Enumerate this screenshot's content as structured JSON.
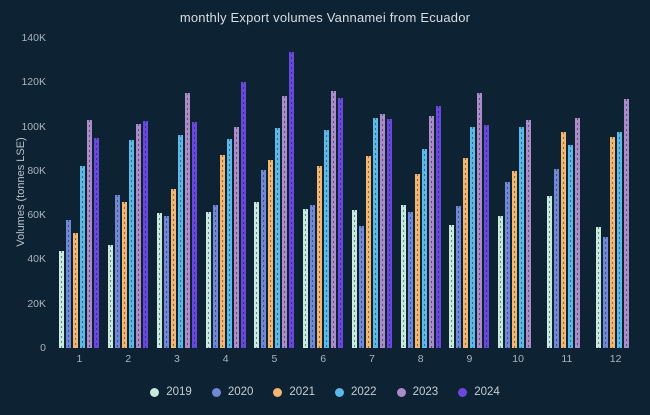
{
  "title": "monthly Export volumes Vannamei from Ecuador",
  "colors": {
    "background": "#0d2233",
    "title_text": "#d6dde4",
    "axis_text": "#a9b5c1",
    "legend_text": "#c6cdd4"
  },
  "chart_data": {
    "type": "bar",
    "title": "monthly Export volumes Vannamei from Ecuador",
    "xlabel": "",
    "ylabel": "Volumes (tonnes LSE)",
    "categories": [
      "1",
      "2",
      "3",
      "4",
      "5",
      "6",
      "7",
      "8",
      "9",
      "10",
      "11",
      "12"
    ],
    "ylim": [
      0,
      140000
    ],
    "grid": false,
    "legend_position": "bottom",
    "y_ticks": [
      {
        "label": "0",
        "value": 0
      },
      {
        "label": "20K",
        "value": 20000
      },
      {
        "label": "40K",
        "value": 40000
      },
      {
        "label": "60K",
        "value": 60000
      },
      {
        "label": "80K",
        "value": 80000
      },
      {
        "label": "100K",
        "value": 100000
      },
      {
        "label": "120K",
        "value": 120000
      },
      {
        "label": "140K",
        "value": 140000
      }
    ],
    "series": [
      {
        "name": "2019",
        "color": "#c7e9de",
        "values": [
          44000,
          46500,
          61000,
          61500,
          66000,
          63000,
          62500,
          64500,
          55500,
          59500,
          68500,
          54500
        ]
      },
      {
        "name": "2020",
        "color": "#7088d6",
        "values": [
          58000,
          69000,
          59500,
          64500,
          80500,
          64500,
          55000,
          61500,
          64000,
          75000,
          81000,
          50000
        ]
      },
      {
        "name": "2021",
        "color": "#f3b671",
        "values": [
          52000,
          66000,
          72000,
          87000,
          85000,
          82000,
          86500,
          78500,
          86000,
          80000,
          97500,
          95500
        ]
      },
      {
        "name": "2022",
        "color": "#5cb8e6",
        "values": [
          82000,
          94000,
          96000,
          94500,
          99500,
          98500,
          104000,
          90000,
          100000,
          100000,
          91500,
          97500
        ]
      },
      {
        "name": "2023",
        "color": "#ab8cc8",
        "values": [
          103000,
          101000,
          115000,
          100000,
          114000,
          116000,
          105500,
          105000,
          115000,
          103000,
          104000,
          112500
        ]
      },
      {
        "name": "2024",
        "color": "#6a48de",
        "values": [
          95000,
          102500,
          102000,
          120000,
          133500,
          113000,
          103500,
          109500,
          100500,
          null,
          null,
          null
        ]
      }
    ]
  }
}
